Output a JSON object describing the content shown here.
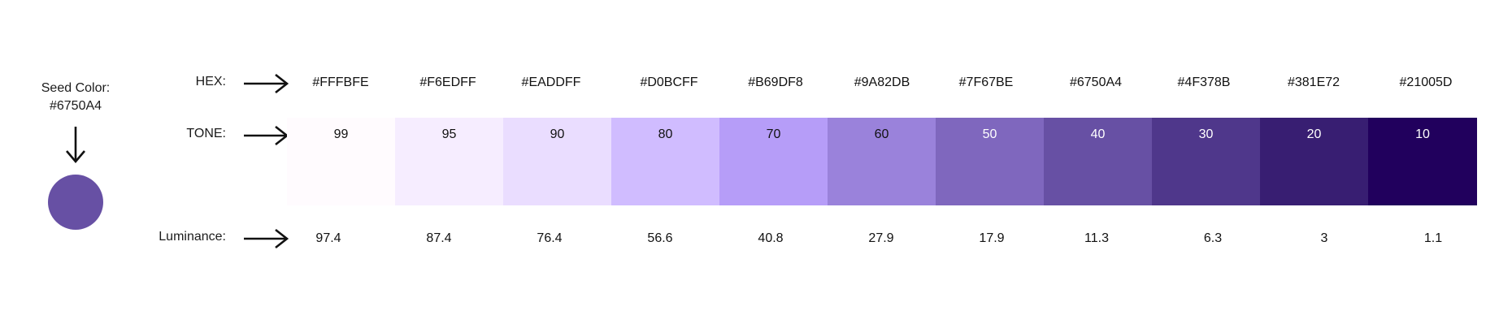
{
  "seed": {
    "title": "Seed Color:",
    "hex": "#6750A4",
    "color": "#6750A4"
  },
  "labels": {
    "hex": "HEX:",
    "tone": "TONE:",
    "luminance": "Luminance:"
  },
  "palette": [
    {
      "hex": "#FFFBFE",
      "tone": "99",
      "luminance": "97.4",
      "color": "#FFFBFE",
      "text_color": "#111111"
    },
    {
      "hex": "#F6EDFF",
      "tone": "95",
      "luminance": "87.4",
      "color": "#F6EDFF",
      "text_color": "#111111"
    },
    {
      "hex": "#EADDFF",
      "tone": "90",
      "luminance": "76.4",
      "color": "#EADDFF",
      "text_color": "#111111"
    },
    {
      "hex": "#D0BCFF",
      "tone": "80",
      "luminance": "56.6",
      "color": "#D0BCFF",
      "text_color": "#111111"
    },
    {
      "hex": "#B69DF8",
      "tone": "70",
      "luminance": "40.8",
      "color": "#B69DF8",
      "text_color": "#111111"
    },
    {
      "hex": "#9A82DB",
      "tone": "60",
      "luminance": "27.9",
      "color": "#9A82DB",
      "text_color": "#111111"
    },
    {
      "hex": "#7F67BE",
      "tone": "50",
      "luminance": "17.9",
      "color": "#7F67BE",
      "text_color": "#FFFFFF"
    },
    {
      "hex": "#6750A4",
      "tone": "40",
      "luminance": "11.3",
      "color": "#6750A4",
      "text_color": "#FFFFFF"
    },
    {
      "hex": "#4F378B",
      "tone": "30",
      "luminance": "6.3",
      "color": "#4F378B",
      "text_color": "#FFFFFF"
    },
    {
      "hex": "#381E72",
      "tone": "20",
      "luminance": "3",
      "color": "#381E72",
      "text_color": "#FFFFFF"
    },
    {
      "hex": "#21005D",
      "tone": "10",
      "luminance": "1.1",
      "color": "#21005D",
      "text_color": "#FFFFFF"
    }
  ]
}
